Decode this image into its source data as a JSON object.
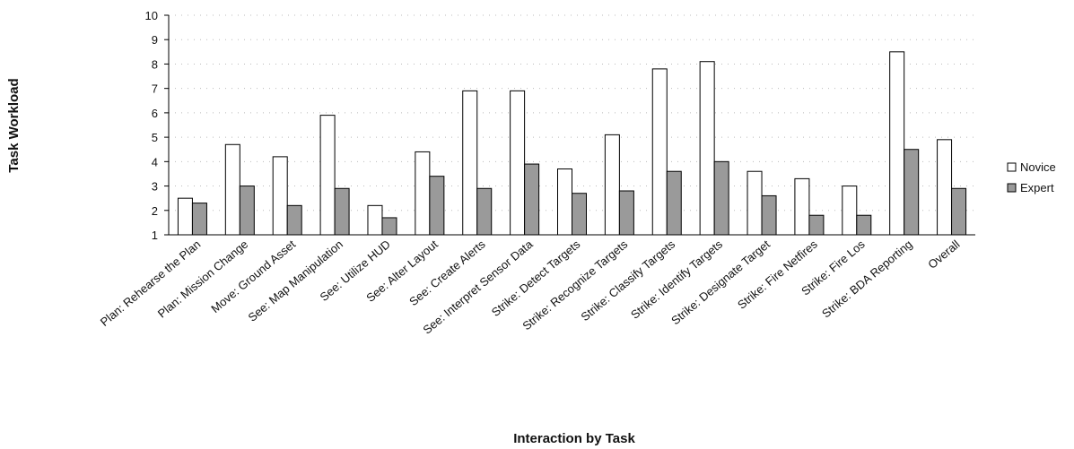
{
  "chart_data": {
    "type": "bar",
    "ylabel": "Task Workload",
    "xlabel": "Interaction by Task",
    "categories": [
      "Plan: Rehearse the Plan",
      "Plan: Mission Change",
      "Move: Ground Asset",
      "See: Map Manipulation",
      "See: Utilize HUD",
      "See: Alter Layout",
      "See: Create Alerts",
      "See: Interpret Sensor Data",
      "Strike: Detect Targets",
      "Strike: Recognize Targets",
      "Strike: Classify Targets",
      "Strike: Identify Targets",
      "Strike: Designate Target",
      "Strike: Fire Netfires",
      "Strike: Fire Los",
      "Strike: BDA Reporting",
      "Overall"
    ],
    "series": [
      {
        "name": "Novice",
        "color": "#ffffff",
        "values": [
          2.5,
          4.7,
          4.2,
          5.9,
          2.2,
          4.4,
          6.9,
          6.9,
          3.7,
          5.1,
          7.8,
          8.1,
          3.6,
          3.3,
          3.0,
          8.5,
          4.9
        ]
      },
      {
        "name": "Expert",
        "color": "#9a9a9a",
        "values": [
          2.3,
          3.0,
          2.2,
          2.9,
          1.7,
          3.4,
          2.9,
          3.9,
          2.7,
          2.8,
          3.6,
          4.0,
          2.6,
          1.8,
          1.8,
          4.5,
          2.9
        ]
      }
    ],
    "ylim": [
      1,
      10
    ],
    "yticks": [
      1,
      2,
      3,
      4,
      5,
      6,
      7,
      8,
      9,
      10
    ],
    "grid": true,
    "legend": "right"
  }
}
